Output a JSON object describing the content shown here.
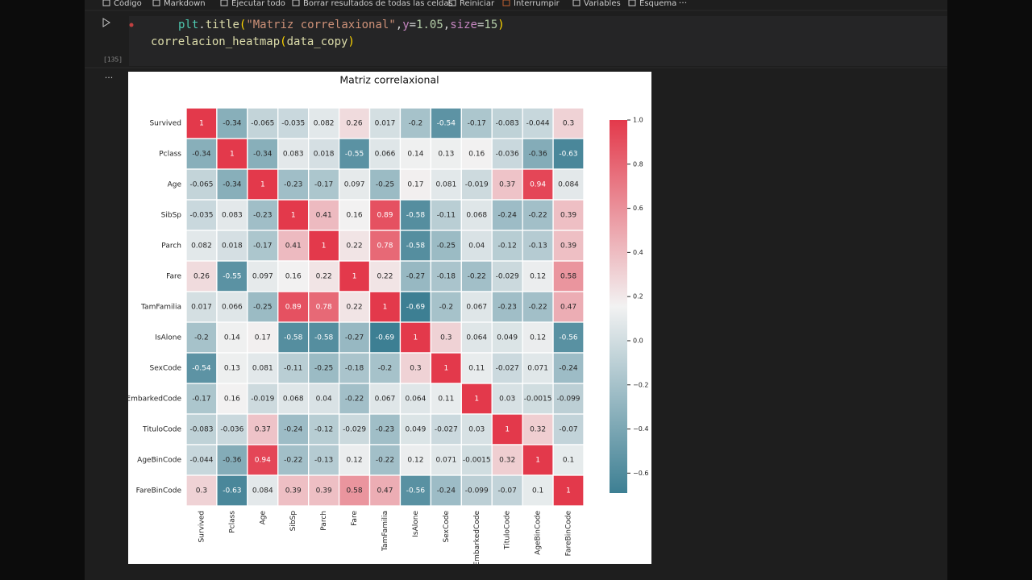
{
  "toolbar": {
    "items": [
      {
        "label": "Código",
        "enabled": true
      },
      {
        "label": "Markdown",
        "enabled": true
      },
      {
        "label": "Ejecutar todo",
        "enabled": true
      },
      {
        "label": "Borrar resultados de todas las celdas",
        "enabled": true
      },
      {
        "label": "Reiniciar",
        "enabled": true
      },
      {
        "label": "Interrumpir",
        "enabled": false
      },
      {
        "label": "Variables",
        "enabled": true
      },
      {
        "label": "Esquema",
        "enabled": true
      }
    ]
  },
  "cell": {
    "execution_count": "[135]",
    "code_lines": [
      [
        {
          "text": "plt",
          "color": "#4ec9b0"
        },
        {
          "text": ".",
          "color": "#d4d4d4"
        },
        {
          "text": "title",
          "color": "#dcdcaa"
        },
        {
          "text": "(",
          "color": "#ffd700"
        },
        {
          "text": "\"Matriz correlaxional\"",
          "color": "#ce9178"
        },
        {
          "text": ",",
          "color": "#d4d4d4"
        },
        {
          "text": "y",
          "color": "#c586c0"
        },
        {
          "text": "=",
          "color": "#d4d4d4"
        },
        {
          "text": "1.05",
          "color": "#b5cea8"
        },
        {
          "text": ",",
          "color": "#d4d4d4"
        },
        {
          "text": "size",
          "color": "#c586c0"
        },
        {
          "text": "=",
          "color": "#d4d4d4"
        },
        {
          "text": "15",
          "color": "#b5cea8"
        },
        {
          "text": ")",
          "color": "#ffd700"
        }
      ],
      [
        {
          "text": "correlacion_heatmap",
          "color": "#dcdcaa"
        },
        {
          "text": "(",
          "color": "#ffd700"
        },
        {
          "text": "data_copy",
          "color": "#dcdcaa"
        },
        {
          "text": ")",
          "color": "#ffd700"
        }
      ]
    ]
  },
  "chart_data": {
    "type": "heatmap",
    "title": "Matriz correlaxional",
    "categories": [
      "Survived",
      "Pclass",
      "Age",
      "SibSp",
      "Parch",
      "Fare",
      "TamFamilia",
      "IsAlone",
      "SexCode",
      "EmbarkedCode",
      "TituloCode",
      "AgeBinCode",
      "FareBinCode"
    ],
    "values": [
      [
        1,
        -0.34,
        -0.065,
        -0.035,
        0.082,
        0.26,
        0.017,
        -0.2,
        -0.54,
        -0.17,
        -0.083,
        -0.044,
        0.3
      ],
      [
        -0.34,
        1,
        -0.34,
        0.083,
        0.018,
        -0.55,
        0.066,
        0.14,
        0.13,
        0.16,
        -0.036,
        -0.36,
        -0.63
      ],
      [
        -0.065,
        -0.34,
        1,
        -0.23,
        -0.17,
        0.097,
        -0.25,
        0.17,
        0.081,
        -0.019,
        0.37,
        0.94,
        0.084
      ],
      [
        -0.035,
        0.083,
        -0.23,
        1,
        0.41,
        0.16,
        0.89,
        -0.58,
        -0.11,
        0.068,
        -0.24,
        -0.22,
        0.39
      ],
      [
        0.082,
        0.018,
        -0.17,
        0.41,
        1,
        0.22,
        0.78,
        -0.58,
        -0.25,
        0.04,
        -0.12,
        -0.13,
        0.39
      ],
      [
        0.26,
        -0.55,
        0.097,
        0.16,
        0.22,
        1,
        0.22,
        -0.27,
        -0.18,
        -0.22,
        -0.029,
        0.12,
        0.58
      ],
      [
        0.017,
        0.066,
        -0.25,
        0.89,
        0.78,
        0.22,
        1,
        -0.69,
        -0.2,
        0.067,
        -0.23,
        -0.22,
        0.47
      ],
      [
        -0.2,
        0.14,
        0.17,
        -0.58,
        -0.58,
        -0.27,
        -0.69,
        1,
        0.3,
        0.064,
        0.049,
        0.12,
        -0.56
      ],
      [
        -0.54,
        0.13,
        0.081,
        -0.11,
        -0.25,
        -0.18,
        -0.2,
        0.3,
        1,
        0.11,
        -0.027,
        0.071,
        -0.24
      ],
      [
        -0.17,
        0.16,
        -0.019,
        0.068,
        0.04,
        -0.22,
        0.067,
        0.064,
        0.11,
        1,
        0.03,
        -0.0015,
        -0.099
      ],
      [
        -0.083,
        -0.036,
        0.37,
        -0.24,
        -0.12,
        -0.029,
        -0.23,
        0.049,
        -0.027,
        0.03,
        1,
        0.32,
        -0.07
      ],
      [
        -0.044,
        -0.36,
        0.94,
        -0.22,
        -0.13,
        0.12,
        -0.22,
        0.12,
        0.071,
        -0.0015,
        0.32,
        1,
        0.1
      ],
      [
        0.3,
        -0.63,
        0.084,
        0.39,
        0.39,
        0.58,
        0.47,
        -0.56,
        -0.24,
        -0.099,
        -0.07,
        0.1,
        1
      ]
    ],
    "colors": [
      "#3d7f93",
      "#f2f2f2",
      "#e3394b"
    ],
    "clim": [
      -0.69,
      1.0
    ],
    "cticks": [
      {
        "value": -0.6,
        "label": "−0.6"
      },
      {
        "value": -0.4,
        "label": "−0.4"
      },
      {
        "value": -0.2,
        "label": "−0.2"
      },
      {
        "value": 0,
        "label": "0.0"
      },
      {
        "value": 0.2,
        "label": "0.2"
      },
      {
        "value": 0.4,
        "label": "0.4"
      },
      {
        "value": 0.6,
        "label": "0.6"
      },
      {
        "value": 0.8,
        "label": "0.8"
      },
      {
        "value": 1,
        "label": "1.0"
      }
    ]
  }
}
